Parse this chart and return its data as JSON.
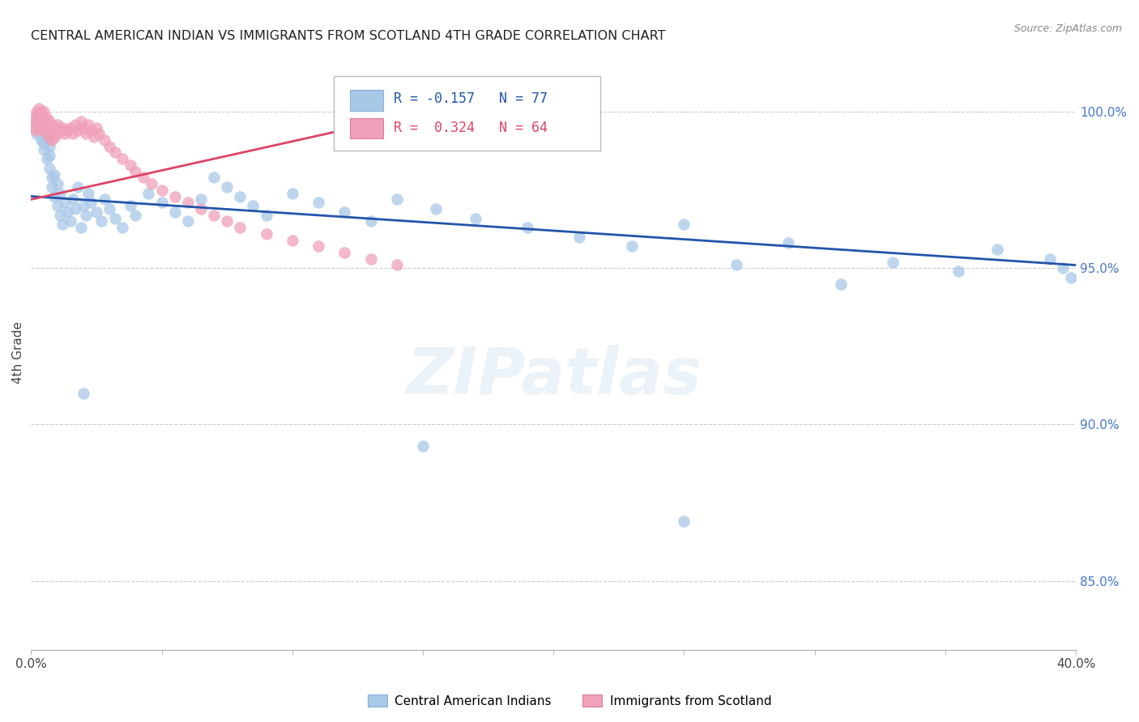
{
  "title": "CENTRAL AMERICAN INDIAN VS IMMIGRANTS FROM SCOTLAND 4TH GRADE CORRELATION CHART",
  "source": "Source: ZipAtlas.com",
  "ylabel": "4th Grade",
  "ytick_vals": [
    0.85,
    0.9,
    0.95,
    1.0
  ],
  "xlim": [
    0.0,
    0.4
  ],
  "ylim": [
    0.828,
    1.018
  ],
  "legend_label1": "Central American Indians",
  "legend_label2": "Immigrants from Scotland",
  "blue_color": "#a8c8e8",
  "pink_color": "#f0a0b8",
  "blue_line_color": "#2255aa",
  "pink_line_color": "#dd4466",
  "watermark": "ZIPatlas",
  "R_blue": -0.157,
  "N_blue": 77,
  "R_pink": 0.324,
  "N_pink": 64,
  "blue_x": [
    0.001,
    0.002,
    0.002,
    0.003,
    0.003,
    0.004,
    0.004,
    0.004,
    0.005,
    0.005,
    0.005,
    0.006,
    0.006,
    0.007,
    0.007,
    0.007,
    0.008,
    0.008,
    0.009,
    0.009,
    0.01,
    0.01,
    0.011,
    0.011,
    0.012,
    0.013,
    0.014,
    0.015,
    0.016,
    0.017,
    0.018,
    0.019,
    0.02,
    0.021,
    0.022,
    0.023,
    0.025,
    0.027,
    0.028,
    0.03,
    0.032,
    0.035,
    0.038,
    0.04,
    0.045,
    0.05,
    0.055,
    0.06,
    0.065,
    0.07,
    0.075,
    0.08,
    0.085,
    0.09,
    0.1,
    0.11,
    0.12,
    0.13,
    0.14,
    0.155,
    0.17,
    0.19,
    0.21,
    0.23,
    0.25,
    0.27,
    0.29,
    0.31,
    0.33,
    0.355,
    0.37,
    0.39,
    0.395,
    0.398,
    0.02,
    0.15,
    0.25
  ],
  "blue_y": [
    0.995,
    0.998,
    0.993,
    0.999,
    0.996,
    0.991,
    0.997,
    0.994,
    0.988,
    0.995,
    0.99,
    0.985,
    0.992,
    0.982,
    0.989,
    0.986,
    0.979,
    0.976,
    0.973,
    0.98,
    0.97,
    0.977,
    0.967,
    0.974,
    0.964,
    0.971,
    0.968,
    0.965,
    0.972,
    0.969,
    0.976,
    0.963,
    0.97,
    0.967,
    0.974,
    0.971,
    0.968,
    0.965,
    0.972,
    0.969,
    0.966,
    0.963,
    0.97,
    0.967,
    0.974,
    0.971,
    0.968,
    0.965,
    0.972,
    0.979,
    0.976,
    0.973,
    0.97,
    0.967,
    0.974,
    0.971,
    0.968,
    0.965,
    0.972,
    0.969,
    0.966,
    0.963,
    0.96,
    0.957,
    0.964,
    0.951,
    0.958,
    0.945,
    0.952,
    0.949,
    0.956,
    0.953,
    0.95,
    0.947,
    0.91,
    0.893,
    0.869
  ],
  "pink_x": [
    0.001,
    0.001,
    0.002,
    0.002,
    0.002,
    0.003,
    0.003,
    0.003,
    0.004,
    0.004,
    0.004,
    0.005,
    0.005,
    0.005,
    0.006,
    0.006,
    0.006,
    0.007,
    0.007,
    0.007,
    0.008,
    0.008,
    0.008,
    0.009,
    0.009,
    0.01,
    0.01,
    0.011,
    0.012,
    0.013,
    0.014,
    0.015,
    0.016,
    0.017,
    0.018,
    0.019,
    0.02,
    0.021,
    0.022,
    0.023,
    0.024,
    0.025,
    0.026,
    0.028,
    0.03,
    0.032,
    0.035,
    0.038,
    0.04,
    0.043,
    0.046,
    0.05,
    0.055,
    0.06,
    0.065,
    0.07,
    0.075,
    0.08,
    0.09,
    0.1,
    0.11,
    0.12,
    0.13,
    0.14
  ],
  "pink_y": [
    0.998,
    0.995,
    1.0,
    0.997,
    0.994,
    1.001,
    0.999,
    0.996,
    1.0,
    0.998,
    0.995,
    1.0,
    0.997,
    0.994,
    0.998,
    0.996,
    0.993,
    0.997,
    0.995,
    0.992,
    0.996,
    0.994,
    0.991,
    0.995,
    0.992,
    0.993,
    0.996,
    0.994,
    0.995,
    0.993,
    0.994,
    0.995,
    0.993,
    0.996,
    0.994,
    0.997,
    0.995,
    0.993,
    0.996,
    0.994,
    0.992,
    0.995,
    0.993,
    0.991,
    0.989,
    0.987,
    0.985,
    0.983,
    0.981,
    0.979,
    0.977,
    0.975,
    0.973,
    0.971,
    0.969,
    0.967,
    0.965,
    0.963,
    0.961,
    0.959,
    0.957,
    0.955,
    0.953,
    0.951
  ],
  "blue_line_x": [
    0.0,
    0.4
  ],
  "blue_line_y": [
    0.973,
    0.951
  ],
  "pink_line_x": [
    0.0,
    0.14
  ],
  "pink_line_y": [
    0.972,
    0.998
  ]
}
